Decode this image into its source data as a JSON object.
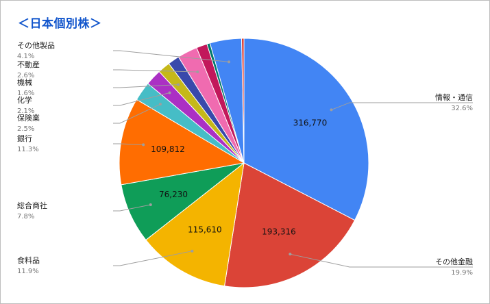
{
  "chart_data": {
    "type": "pie",
    "title": "＜日本個別株＞",
    "slices": [
      {
        "label": "情報・通信",
        "percent_text": "32.6%",
        "value": 316770,
        "value_label": "316,770",
        "percent": 32.6,
        "color": "#4285f4"
      },
      {
        "label": "その他金融",
        "percent_text": "19.9%",
        "value": 193316,
        "value_label": "193,316",
        "percent": 19.9,
        "color": "#db4437"
      },
      {
        "label": "食料品",
        "percent_text": "11.9%",
        "value": 115610,
        "value_label": "115,610",
        "percent": 11.9,
        "color": "#f4b400"
      },
      {
        "label": "総合商社",
        "percent_text": "7.8%",
        "value": 76230,
        "value_label": "76,230",
        "percent": 7.8,
        "color": "#0f9d58"
      },
      {
        "label": "銀行",
        "percent_text": "11.3%",
        "value": 109812,
        "value_label": "109,812",
        "percent": 11.3,
        "color": "#ff6d01"
      },
      {
        "label": "保険業",
        "percent_text": "2.5%",
        "value": null,
        "value_label": "",
        "percent": 2.5,
        "color": "#46bdc6"
      },
      {
        "label": "化学",
        "percent_text": "2.1%",
        "value": null,
        "value_label": "",
        "percent": 2.1,
        "color": "#ab30c4"
      },
      {
        "label": "機械",
        "percent_text": "1.6%",
        "value": null,
        "value_label": "",
        "percent": 1.6,
        "color": "#c5b81a"
      },
      {
        "label": "",
        "percent_text": "",
        "value": null,
        "value_label": "",
        "percent": 1.5,
        "color": "#3949ab"
      },
      {
        "label": "不動産",
        "percent_text": "2.6%",
        "value": null,
        "value_label": "",
        "percent": 2.6,
        "color": "#f06bb0"
      },
      {
        "label": "",
        "percent_text": "",
        "value": null,
        "value_label": "",
        "percent": 1.4,
        "color": "#c2185b"
      },
      {
        "label": "",
        "percent_text": "",
        "value": null,
        "value_label": "",
        "percent": 0.4,
        "color": "#00796b"
      },
      {
        "label": "その他製品",
        "percent_text": "4.1%",
        "value": null,
        "value_label": "",
        "percent": 4.1,
        "color": "#4285f4"
      },
      {
        "label": "",
        "percent_text": "",
        "value": null,
        "value_label": "",
        "percent": 0.3,
        "color": "#d93025"
      }
    ],
    "legend": "callout-labels"
  }
}
